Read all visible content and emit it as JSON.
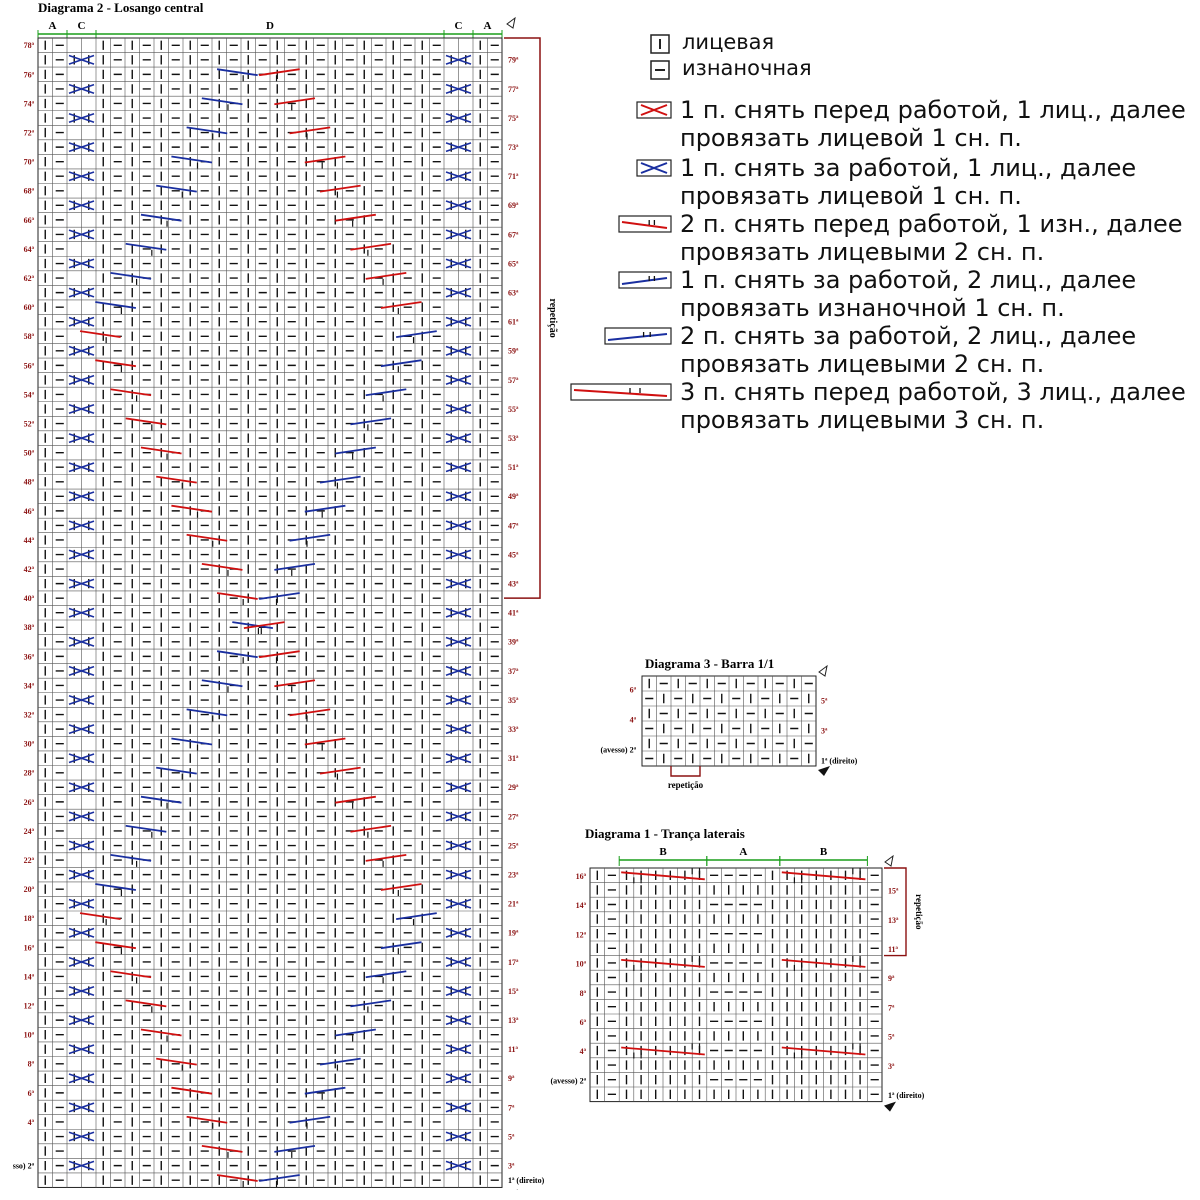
{
  "legend": {
    "knit": "лицевая",
    "purl": "изнаночная",
    "cables": [
      {
        "line1": "1 п. снять перед работой, 1 лиц., далее",
        "line2": "провязать лицевой 1 сн. п.",
        "color": "#d01010"
      },
      {
        "line1": "1 п. снять за работой, 1 лиц., далее",
        "line2": "провязать лицевой 1 сн. п.",
        "color": "#1a2fa0"
      },
      {
        "line1": "2 п. снять перед работой, 1 изн., далее",
        "line2": "провязать лицевыми 2 сн. п.",
        "color": "#d01010"
      },
      {
        "line1": "1 п. снять за работой, 2 лиц., далее",
        "line2": "провязать изнаночной 1 сн. п.",
        "color": "#1a2fa0"
      },
      {
        "line1": "2 п. снять за работой, 2 лиц., далее",
        "line2": "провязать лицевыми 2 сн. п.",
        "color": "#1a2fa0"
      },
      {
        "line1": "3 п. снять перед работой, 3 лиц., далее",
        "line2": "провязать лицевыми 3 сн. п.",
        "color": "#d01010"
      }
    ]
  },
  "diagram2": {
    "title": "Diagrama 2 - Losango central",
    "sections": [
      "A",
      "C",
      "D",
      "C",
      "A"
    ],
    "repeat_label": "repetição",
    "first_row": "1ª (direito)",
    "second_row_prefix": "sso) 2ª",
    "rows_left": [
      "78ª",
      "76ª",
      "74ª",
      "72ª",
      "70ª",
      "68ª",
      "66ª",
      "64ª",
      "62ª",
      "60ª",
      "58ª",
      "56ª",
      "54ª",
      "52ª",
      "50ª",
      "48ª",
      "46ª",
      "44ª",
      "42ª",
      "40ª",
      "38ª",
      "36ª",
      "34ª",
      "32ª",
      "30ª",
      "28ª",
      "26ª",
      "24ª",
      "22ª",
      "20ª",
      "18ª",
      "16ª",
      "14ª",
      "12ª",
      "10ª",
      "8ª",
      "6ª",
      "4ª"
    ],
    "rows_right": [
      "79ª",
      "77ª",
      "75ª",
      "73ª",
      "71ª",
      "69ª",
      "67ª",
      "65ª",
      "63ª",
      "61ª",
      "59ª",
      "57ª",
      "55ª",
      "53ª",
      "51ª",
      "49ª",
      "47ª",
      "45ª",
      "43ª",
      "41ª",
      "39ª",
      "37ª",
      "35ª",
      "33ª",
      "31ª",
      "29ª",
      "27ª",
      "25ª",
      "23ª",
      "21ª",
      "19ª",
      "17ª",
      "15ª",
      "13ª",
      "11ª",
      "9ª",
      "7ª",
      "5ª",
      "3ª"
    ]
  },
  "diagram3": {
    "title": "Diagrama 3 - Barra 1/1",
    "rows_left": [
      "6ª",
      "4ª"
    ],
    "row_left_2": "(avesso) 2ª",
    "rows_right": [
      "5ª",
      "3ª"
    ],
    "first_row": "1ª (direito)",
    "repeat_label": "repetição"
  },
  "diagram1": {
    "title": "Diagrama 1 - Trança laterais",
    "sections": [
      "B",
      "A",
      "B"
    ],
    "rows_left": [
      "16ª",
      "14ª",
      "12ª",
      "10ª",
      "8ª",
      "6ª",
      "4ª"
    ],
    "row_left_2": "(avesso) 2ª",
    "rows_right": [
      "15ª",
      "13ª",
      "11ª",
      "9ª",
      "7ª",
      "5ª",
      "3ª"
    ],
    "first_row": "1ª (direito)",
    "repeat_label": "repetição"
  }
}
